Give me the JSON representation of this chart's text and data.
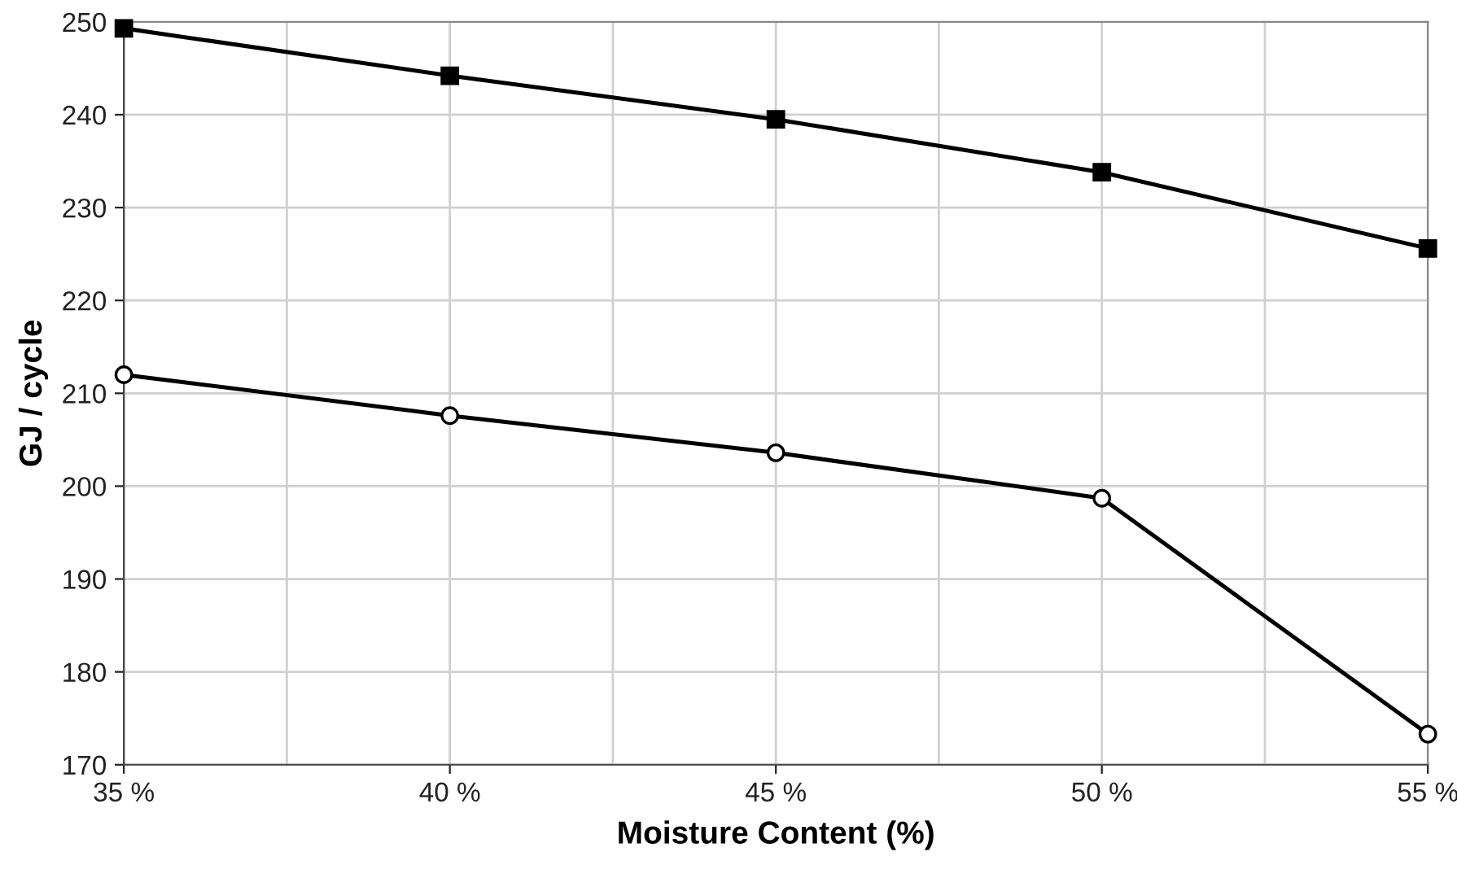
{
  "chart_data": {
    "type": "line",
    "xlabel": "Moisture Content (%)",
    "ylabel": "GJ / cycle",
    "x": [
      35,
      40,
      45,
      50,
      55
    ],
    "series": [
      {
        "color": "#000000",
        "marker": "square",
        "values": [
          249.3,
          244.2,
          239.5,
          233.8,
          225.6
        ]
      },
      {
        "color": "#000000",
        "marker": "circle",
        "values": [
          212.0,
          207.6,
          203.6,
          198.7,
          173.3
        ]
      }
    ],
    "xlim": [
      35,
      55
    ],
    "ylim": [
      170,
      250
    ],
    "xticks": [
      {
        "value": 35,
        "label": "35 %"
      },
      {
        "value": 37.5,
        "label": null
      },
      {
        "value": 40,
        "label": "40 %"
      },
      {
        "value": 42.5,
        "label": null
      },
      {
        "value": 45,
        "label": "45 %"
      },
      {
        "value": 47.5,
        "label": null
      },
      {
        "value": 50,
        "label": "50 %"
      },
      {
        "value": 52.5,
        "label": null
      },
      {
        "value": 55,
        "label": "55 %"
      }
    ],
    "yticks": [
      170,
      180,
      190,
      200,
      210,
      220,
      230,
      240,
      250
    ],
    "grid": true,
    "line_style": "solid"
  }
}
